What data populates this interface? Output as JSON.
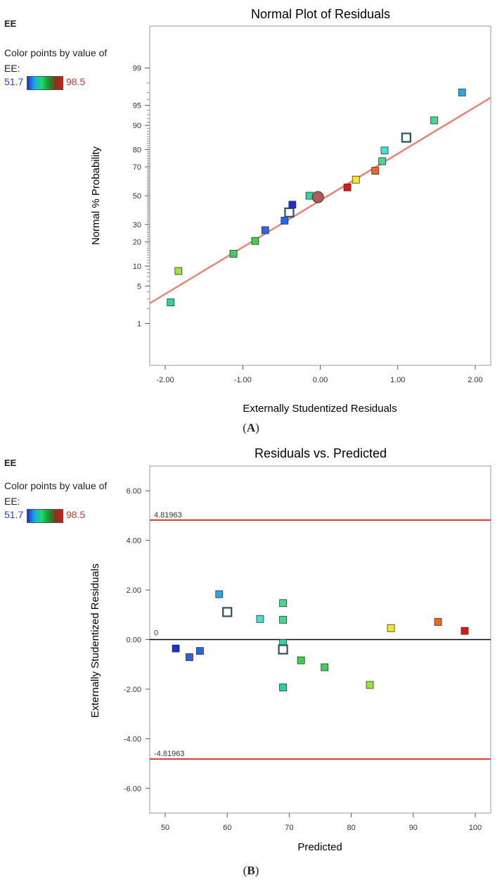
{
  "colors": {
    "fit_line": "#e8847a",
    "control_line": "#d9302c",
    "zero_line": "#000000",
    "frame": "#9a9a9a",
    "legend_low": "#2a3fc8",
    "legend_high": "#c0392b"
  },
  "chart_data": [
    {
      "type": "scatter",
      "title": "Normal Plot of Residuals",
      "xlabel": "Externally Studentized Residuals",
      "ylabel": "Normal % Probability",
      "panel_label": "A",
      "sidebar": {
        "response": "EE",
        "color_text": "Color points by value of EE:",
        "color_min": "51.7",
        "color_max": "98.5"
      },
      "y_scale": "normal-probability",
      "xlim": [
        -2.2,
        2.2
      ],
      "ylim": [
        0.1,
        99.9
      ],
      "x_ticks": [
        "-2.00",
        "-1.00",
        "0.00",
        "1.00",
        "2.00"
      ],
      "y_ticks": [
        "1",
        "5",
        "10",
        "20",
        "30",
        "50",
        "70",
        "80",
        "90",
        "95",
        "99"
      ],
      "fit_line": {
        "x": [
          -2.2,
          2.2
        ],
        "y": [
          2.5,
          96.3
        ]
      },
      "points": [
        {
          "x": -1.93,
          "y": 2.6,
          "color": "#2dd0a3"
        },
        {
          "x": -1.83,
          "y": 8.5,
          "color": "#9de23c"
        },
        {
          "x": -1.12,
          "y": 14.5,
          "color": "#3fd05a"
        },
        {
          "x": -0.84,
          "y": 20.5,
          "color": "#3bd24e"
        },
        {
          "x": -0.71,
          "y": 26.5,
          "color": "#2f66e0"
        },
        {
          "x": -0.46,
          "y": 32.5,
          "color": "#2566ea"
        },
        {
          "x": -0.4,
          "y": 38.0,
          "color": "#ffffff",
          "hollow": true
        },
        {
          "x": -0.36,
          "y": 43.5,
          "color": "#1a2fd6"
        },
        {
          "x": -0.14,
          "y": 50.0,
          "color": "#2ed8a0"
        },
        {
          "x": -0.03,
          "y": 49.0,
          "color": "#b05a58",
          "circle": true
        },
        {
          "x": 0.35,
          "y": 56.0,
          "color": "#e01616"
        },
        {
          "x": 0.46,
          "y": 61.5,
          "color": "#f3e72a"
        },
        {
          "x": 0.71,
          "y": 67.5,
          "color": "#ea6a22"
        },
        {
          "x": 0.8,
          "y": 73.5,
          "color": "#44d98c"
        },
        {
          "x": 0.83,
          "y": 79.5,
          "color": "#44e0d0"
        },
        {
          "x": 1.11,
          "y": 85.5,
          "color": "#ffffff",
          "hollow": true
        },
        {
          "x": 1.47,
          "y": 91.5,
          "color": "#44d98c"
        },
        {
          "x": 1.83,
          "y": 97.0,
          "color": "#2aa7e6"
        }
      ]
    },
    {
      "type": "scatter",
      "title": "Residuals vs. Predicted",
      "xlabel": "Predicted",
      "ylabel": "Externally Studentized Residuals",
      "panel_label": "B",
      "sidebar": {
        "response": "EE",
        "color_text": "Color points by value of EE:",
        "color_min": "51.7",
        "color_max": "98.5"
      },
      "xlim": [
        47.5,
        102.5
      ],
      "ylim": [
        -7.0,
        7.0
      ],
      "x_ticks": [
        "50",
        "60",
        "70",
        "80",
        "90",
        "100"
      ],
      "y_ticks": [
        "-6.00",
        "-4.00",
        "-2.00",
        "0.00",
        "2.00",
        "4.00",
        "6.00"
      ],
      "control_limits": {
        "upper": 4.81963,
        "upper_label": "4.81963",
        "lower": -4.81963,
        "lower_label": "-4.81963"
      },
      "zero_line": {
        "value": 0,
        "label": "0"
      },
      "points": [
        {
          "x": 51.7,
          "y": -0.36,
          "color": "#1a2fd6"
        },
        {
          "x": 53.9,
          "y": -0.71,
          "color": "#2f5fe0"
        },
        {
          "x": 55.6,
          "y": -0.46,
          "color": "#2566ea"
        },
        {
          "x": 58.7,
          "y": 1.83,
          "color": "#2aa7e6"
        },
        {
          "x": 60.0,
          "y": 1.11,
          "color": "#ffffff",
          "hollow": true
        },
        {
          "x": 65.3,
          "y": 0.83,
          "color": "#44e0d0"
        },
        {
          "x": 69.0,
          "y": 1.47,
          "color": "#44d98c"
        },
        {
          "x": 69.0,
          "y": 0.8,
          "color": "#44d98c"
        },
        {
          "x": 69.0,
          "y": -0.14,
          "color": "#2ed8a0"
        },
        {
          "x": 69.0,
          "y": -0.4,
          "color": "#ffffff",
          "hollow": true
        },
        {
          "x": 69.0,
          "y": -1.93,
          "color": "#2dd0a3"
        },
        {
          "x": 71.9,
          "y": -0.84,
          "color": "#3bd24e"
        },
        {
          "x": 75.7,
          "y": -1.12,
          "color": "#3fd05a"
        },
        {
          "x": 83.0,
          "y": -1.83,
          "color": "#9de23c"
        },
        {
          "x": 86.4,
          "y": 0.46,
          "color": "#f3e72a"
        },
        {
          "x": 94.0,
          "y": 0.71,
          "color": "#ea6a22"
        },
        {
          "x": 98.3,
          "y": 0.35,
          "color": "#e01616"
        }
      ]
    }
  ]
}
